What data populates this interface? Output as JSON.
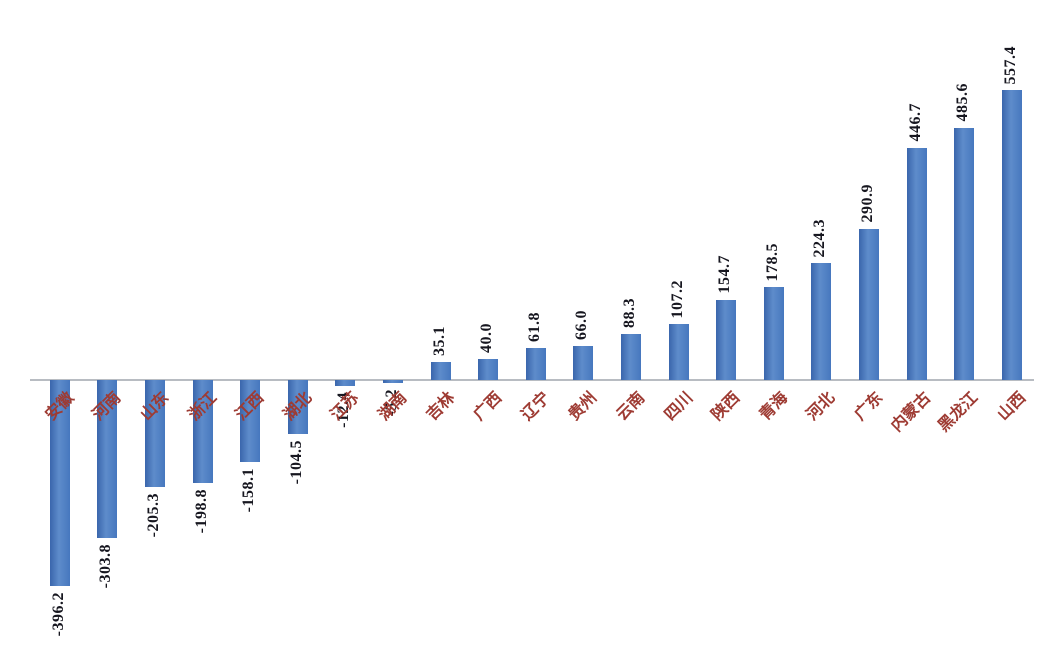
{
  "chart_data": {
    "type": "bar",
    "title": "",
    "xlabel": "",
    "ylabel": "",
    "grid": false,
    "legend": false,
    "categories": [
      "安徽",
      "河南",
      "山东",
      "浙江",
      "江西",
      "湖北",
      "江苏",
      "湖南",
      "吉林",
      "广西",
      "辽宁",
      "贵州",
      "云南",
      "四川",
      "陕西",
      "青海",
      "河北",
      "广东",
      "内蒙古",
      "黑龙江",
      "山西"
    ],
    "values": [
      -396.2,
      -303.8,
      -205.3,
      -198.8,
      -158.1,
      -104.5,
      -12.4,
      -5.2,
      35.1,
      40.0,
      61.8,
      66.0,
      88.3,
      107.2,
      154.7,
      178.5,
      224.3,
      290.9,
      446.7,
      485.6,
      557.4
    ],
    "value_labels": [
      "-396.2",
      "-303.8",
      "-205.3",
      "-198.8",
      "-158.1",
      "-104.5",
      "-12.4",
      "-5.2",
      "35.1",
      "40.0",
      "61.8",
      "66.0",
      "88.3",
      "107.2",
      "154.7",
      "178.5",
      "224.3",
      "290.9",
      "446.7",
      "485.6",
      "557.4"
    ],
    "ylim": [
      -450,
      600
    ],
    "colors": {
      "bar_fill": "#4677BE",
      "bar_fill_light": "#5E8CCB",
      "bar_fill_dark": "#3A66AC",
      "category_label": "#9E3B33",
      "value_label": "#16161f",
      "axis_line": "#b8bcc2",
      "background": "#ffffff"
    }
  }
}
